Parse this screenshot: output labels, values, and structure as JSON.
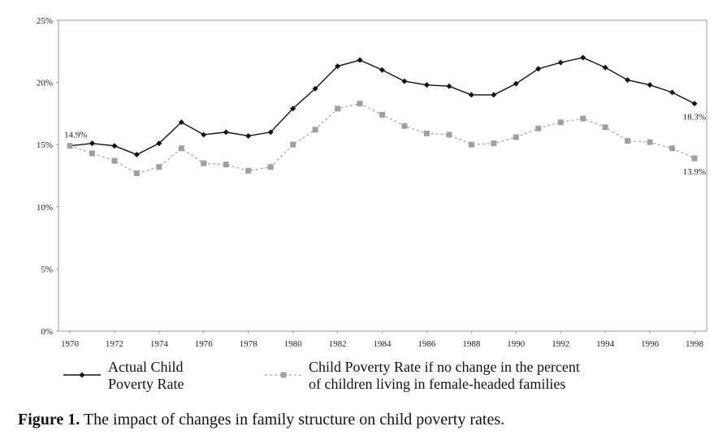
{
  "chart_data": {
    "type": "line",
    "title": "",
    "xlabel": "",
    "ylabel": "",
    "x": [
      1970,
      1971,
      1972,
      1973,
      1974,
      1975,
      1976,
      1977,
      1978,
      1979,
      1980,
      1981,
      1982,
      1983,
      1984,
      1985,
      1986,
      1987,
      1988,
      1989,
      1990,
      1991,
      1992,
      1993,
      1994,
      1995,
      1996,
      1997,
      1998
    ],
    "xticks": [
      "1970",
      "1972",
      "1974",
      "1976",
      "1978",
      "1980",
      "1982",
      "1984",
      "1986",
      "1988",
      "1990",
      "1992",
      "1994",
      "1996",
      "1998"
    ],
    "yticks": [
      "0%",
      "5%",
      "10%",
      "15%",
      "20%",
      "25%"
    ],
    "ylim": [
      0,
      25
    ],
    "grid": false,
    "series": [
      {
        "name": "actual",
        "legend_line1": "Actual Child",
        "legend_line2": "Poverty Rate",
        "color": "#111111",
        "marker": "diamond",
        "style": "solid",
        "values": [
          14.9,
          15.1,
          14.9,
          14.2,
          15.1,
          16.8,
          15.8,
          16.0,
          15.7,
          16.0,
          17.9,
          19.5,
          21.3,
          21.8,
          21.0,
          20.1,
          19.8,
          19.7,
          19.0,
          19.0,
          19.9,
          21.1,
          21.6,
          22.0,
          21.2,
          20.2,
          19.8,
          19.2,
          18.3
        ]
      },
      {
        "name": "no-change",
        "legend_line1": "Child Poverty Rate if no change in the percent",
        "legend_line2": "of children living in female-headed families",
        "color": "#a0a0a0",
        "marker": "square",
        "style": "dashed",
        "values": [
          14.9,
          14.3,
          13.7,
          12.7,
          13.2,
          14.7,
          13.5,
          13.4,
          12.9,
          13.2,
          15.0,
          16.2,
          17.9,
          18.3,
          17.4,
          16.5,
          15.9,
          15.8,
          15.0,
          15.1,
          15.6,
          16.3,
          16.8,
          17.1,
          16.4,
          15.3,
          15.2,
          14.7,
          13.9
        ]
      }
    ],
    "annotations": [
      {
        "text": "14.9%",
        "x": 1970,
        "y": 14.9
      },
      {
        "text": "18.3%",
        "x": 1998,
        "y": 18.3
      },
      {
        "text": "13.9%",
        "x": 1998,
        "y": 13.9
      }
    ]
  },
  "caption": {
    "label": "Figure 1.",
    "text": " The impact of changes in family structure on child poverty rates."
  }
}
